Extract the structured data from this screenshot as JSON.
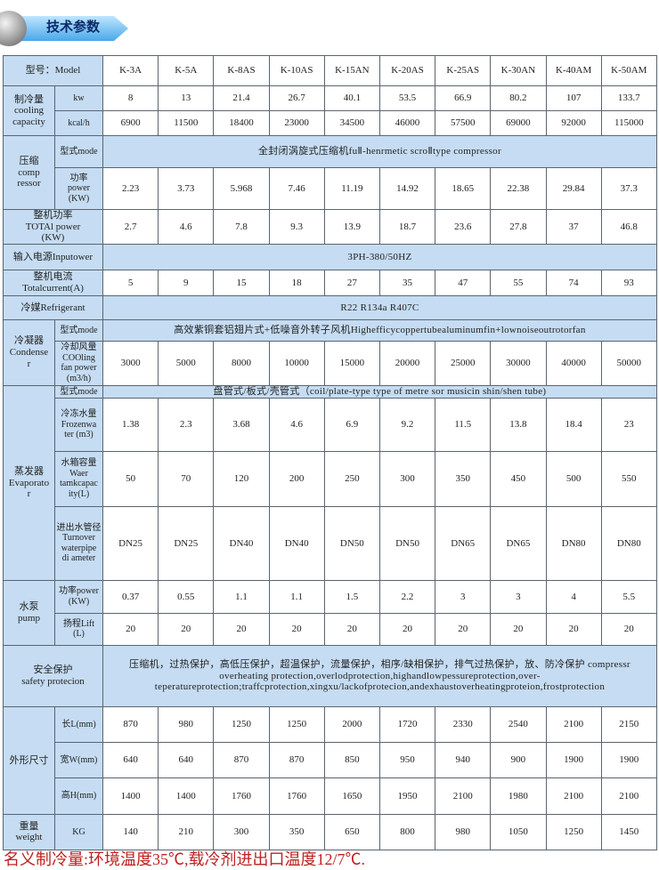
{
  "header": {
    "title": "技术参数"
  },
  "table": {
    "groups": [
      {
        "label": "型号：Model",
        "values": [
          "K-3A",
          "K-5A",
          "K-8AS",
          "K-10AS",
          "K-15AN",
          "K-20AS",
          "K-25AS",
          "K-30AN",
          "K-40AM",
          "K-50AM"
        ]
      },
      {
        "label": "制冷量\ncooling\ncapacity",
        "rows": [
          {
            "label": "kw",
            "values": [
              8,
              13,
              21.4,
              26.7,
              40.1,
              53.5,
              66.9,
              80.2,
              107,
              133.7
            ]
          },
          {
            "label": "kcal/h",
            "values": [
              6900,
              11500,
              18400,
              23000,
              34500,
              46000,
              57500,
              69000,
              92000,
              115000
            ]
          }
        ]
      },
      {
        "label": "压缩\ncomp\nressor",
        "rows": [
          {
            "label": "型式mode",
            "text": "全封闭涡旋式压缩机fuⅡ-henrmetic scroⅡtype compressor"
          },
          {
            "label": "功率\npower\n(KW)",
            "values": [
              2.23,
              3.73,
              5.968,
              7.46,
              11.19,
              14.92,
              18.65,
              22.38,
              29.84,
              37.3
            ]
          }
        ]
      },
      {
        "label": "整机功率\nTOTAl power\n(KW)",
        "values": [
          2.7,
          4.6,
          7.8,
          9.3,
          13.9,
          18.7,
          23.6,
          27.8,
          37,
          46.8
        ]
      },
      {
        "label": "输入电源Inputower",
        "text": "3PH-380/50HZ"
      },
      {
        "label": "整机电流\nTotalcurrent(A)",
        "values": [
          5,
          9,
          15,
          18,
          27,
          35,
          47,
          55,
          74,
          93
        ]
      },
      {
        "label": "冷媒Refrigerant",
        "text": "R22 R134a R407C"
      },
      {
        "label": "冷凝器\nCondense\nr",
        "rows": [
          {
            "label": "型式mode",
            "text": "高效紫铜套铝翅片式+低噪音外转子风机Highefficycoppertubealuminumfin+lownoiseoutrotorfan"
          },
          {
            "label": "冷却风量\nCOOling\nfan power\n(m3/h)",
            "values": [
              3000,
              5000,
              8000,
              10000,
              15000,
              20000,
              25000,
              30000,
              40000,
              50000
            ]
          }
        ]
      },
      {
        "label": "蒸发器\nEvaporato\nr",
        "rows": [
          {
            "label": "型式mode",
            "text": "盘管式/板式/壳管式（coil/plate-type type of metre sor musicin shin/shen tube)"
          },
          {
            "label": "冷冻水量\nFrozenwa\nter (m3)",
            "values": [
              1.38,
              2.3,
              3.68,
              4.6,
              6.9,
              9.2,
              11.5,
              13.8,
              18.4,
              23
            ]
          },
          {
            "label": "水箱容量\nWaer\ntamkcapac\nity(L)",
            "values": [
              50,
              70,
              120,
              200,
              250,
              300,
              350,
              450,
              500,
              550
            ]
          },
          {
            "label": "进出水管径\nTurnover\nwaterpipe\ndi ameter",
            "values": [
              "DN25",
              "DN25",
              "DN40",
              "DN40",
              "DN50",
              "DN50",
              "DN65",
              "DN65",
              "DN80",
              "DN80"
            ]
          }
        ]
      },
      {
        "label": "水泵\npump",
        "rows": [
          {
            "label": "功率power\n(KW)",
            "values": [
              0.37,
              0.55,
              1.1,
              1.1,
              1.5,
              2.2,
              3,
              3,
              4,
              5.5
            ]
          },
          {
            "label": "扬程Lift\n(L)",
            "values": [
              20,
              20,
              20,
              20,
              20,
              20,
              20,
              20,
              20,
              20
            ]
          }
        ]
      },
      {
        "label": "安全保护\nsafety protecion",
        "text": "压缩机，过热保护，高低压保护，超温保护，流量保护，相序/缺相保护，排气过热保护，放、防冷保护 compressr overheating protection,overlodprotection,highandlowpessureprotection,over-teperatureprotection;traffcprotection,xingxu/lackofprotecion,andexhaustoverheatingproteion,frostprotection"
      },
      {
        "label": "外形尺寸",
        "rows": [
          {
            "label": "长L(mm)",
            "values": [
              870,
              980,
              1250,
              1250,
              2000,
              1720,
              2330,
              2540,
              2100,
              2150
            ]
          },
          {
            "label": "宽W(mm)",
            "values": [
              640,
              640,
              870,
              870,
              850,
              950,
              940,
              900,
              1900,
              1900
            ]
          },
          {
            "label": "高H(mm)",
            "values": [
              1400,
              1400,
              1760,
              1760,
              1650,
              1950,
              2100,
              1980,
              2100,
              2100
            ]
          }
        ]
      },
      {
        "label": "重量\nweight",
        "rows": [
          {
            "label": "KG",
            "values": [
              140,
              210,
              300,
              350,
              650,
              800,
              980,
              1050,
              1250,
              1450
            ]
          }
        ]
      }
    ]
  },
  "footnote": "名义制冷量:环境温度35℃,载冷剂进出口温度12/7℃."
}
